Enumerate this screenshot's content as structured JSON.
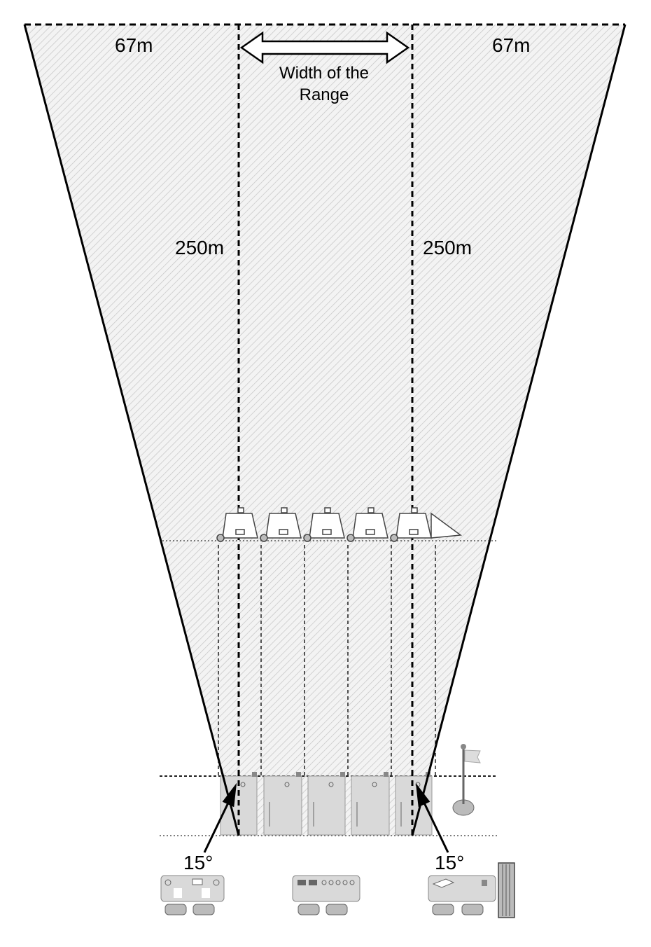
{
  "labels": {
    "top_left_width": "67m",
    "top_right_width": "67m",
    "range_width_line1": "Width of the",
    "range_width_line2": "Range",
    "left_length": "250m",
    "right_length": "250m",
    "left_angle": "15°",
    "right_angle": "15°"
  },
  "targets": {
    "count": 5
  },
  "firing_lanes": {
    "count": 5
  },
  "equipment": [
    "control-unit",
    "control-panel",
    "cable-reel-unit"
  ],
  "colors": {
    "hatch": "#c4c4c4",
    "fill": "#f1f1f1",
    "line": "#000000",
    "gray": "#d9d9d9"
  }
}
